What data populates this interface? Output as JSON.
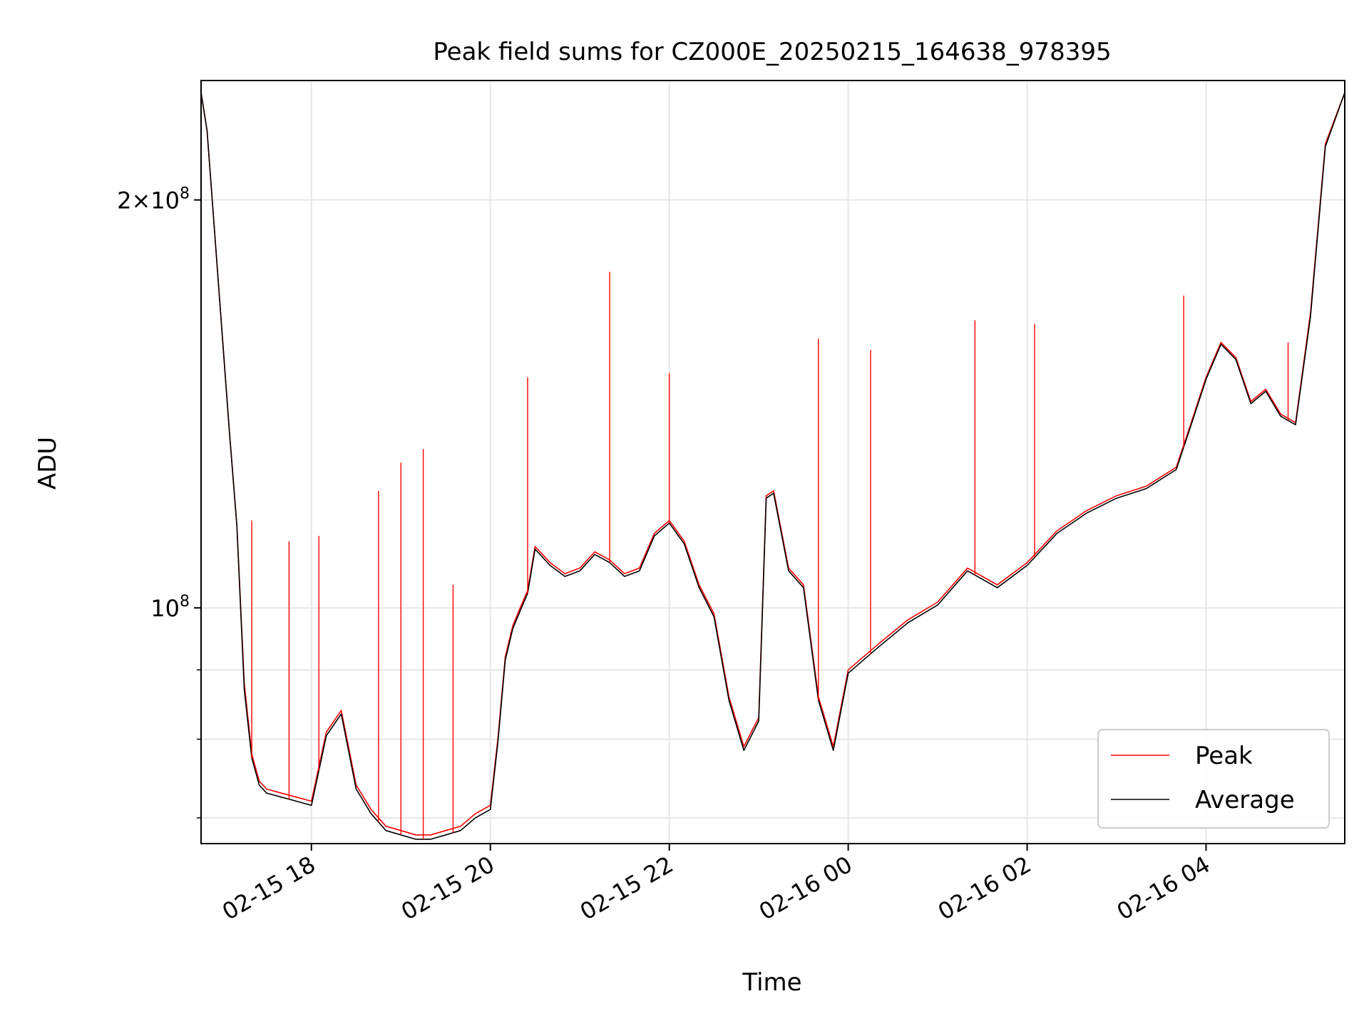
{
  "chart_data": {
    "type": "line",
    "title": "Peak field sums for CZ000E_20250215_164638_978395",
    "xlabel": "Time",
    "ylabel": "ADU",
    "y_scale": "log",
    "grid": true,
    "legend_position": "lower-right",
    "xlim": [
      "2025-02-15T16:46",
      "2025-02-16T05:33"
    ],
    "ylim": [
      67000000,
      245000000
    ],
    "x_ticks": [
      {
        "t": "2025-02-15T18:00",
        "label": "02-15 18"
      },
      {
        "t": "2025-02-15T20:00",
        "label": "02-15 20"
      },
      {
        "t": "2025-02-15T22:00",
        "label": "02-15 22"
      },
      {
        "t": "2025-02-16T00:00",
        "label": "02-16 00"
      },
      {
        "t": "2025-02-16T02:00",
        "label": "02-16 02"
      },
      {
        "t": "2025-02-16T04:00",
        "label": "02-16 04"
      }
    ],
    "y_major_ticks": [
      {
        "v": 100000000,
        "mantissa": "",
        "exponent": "8"
      },
      {
        "v": 200000000,
        "mantissa": "2×",
        "exponent": "8"
      }
    ],
    "y_minor_ticks": [
      70000000,
      80000000,
      90000000
    ],
    "x": [
      "2025-02-15T16:46",
      "2025-02-15T16:50",
      "2025-02-15T16:55",
      "2025-02-15T17:00",
      "2025-02-15T17:05",
      "2025-02-15T17:10",
      "2025-02-15T17:15",
      "2025-02-15T17:20",
      "2025-02-15T17:25",
      "2025-02-15T17:30",
      "2025-02-15T17:40",
      "2025-02-15T17:50",
      "2025-02-15T18:00",
      "2025-02-15T18:10",
      "2025-02-15T18:20",
      "2025-02-15T18:30",
      "2025-02-15T18:40",
      "2025-02-15T18:50",
      "2025-02-15T19:00",
      "2025-02-15T19:10",
      "2025-02-15T19:20",
      "2025-02-15T19:30",
      "2025-02-15T19:40",
      "2025-02-15T19:50",
      "2025-02-15T20:00",
      "2025-02-15T20:05",
      "2025-02-15T20:10",
      "2025-02-15T20:15",
      "2025-02-15T20:20",
      "2025-02-15T20:25",
      "2025-02-15T20:30",
      "2025-02-15T20:40",
      "2025-02-15T20:50",
      "2025-02-15T21:00",
      "2025-02-15T21:10",
      "2025-02-15T21:20",
      "2025-02-15T21:30",
      "2025-02-15T21:40",
      "2025-02-15T21:50",
      "2025-02-15T22:00",
      "2025-02-15T22:10",
      "2025-02-15T22:20",
      "2025-02-15T22:30",
      "2025-02-15T22:40",
      "2025-02-15T22:50",
      "2025-02-15T23:00",
      "2025-02-15T23:05",
      "2025-02-15T23:10",
      "2025-02-15T23:20",
      "2025-02-15T23:30",
      "2025-02-15T23:40",
      "2025-02-15T23:50",
      "2025-02-16T00:00",
      "2025-02-16T00:20",
      "2025-02-16T00:40",
      "2025-02-16T01:00",
      "2025-02-16T01:20",
      "2025-02-16T01:40",
      "2025-02-16T02:00",
      "2025-02-16T02:20",
      "2025-02-16T02:40",
      "2025-02-16T03:00",
      "2025-02-16T03:20",
      "2025-02-16T03:40",
      "2025-02-16T03:50",
      "2025-02-16T04:00",
      "2025-02-16T04:10",
      "2025-02-16T04:20",
      "2025-02-16T04:30",
      "2025-02-16T04:40",
      "2025-02-16T04:50",
      "2025-02-16T05:00",
      "2025-02-16T05:10",
      "2025-02-16T05:20",
      "2025-02-16T05:33"
    ],
    "series": [
      {
        "name": "Peak",
        "color": "#ff0000",
        "values": [
          240000000,
          225000000,
          190000000,
          160000000,
          135000000,
          115000000,
          88000000,
          78000000,
          74500000,
          73500000,
          73000000,
          72500000,
          72000000,
          81000000,
          84000000,
          74000000,
          71000000,
          69000000,
          68500000,
          68000000,
          68000000,
          68500000,
          69000000,
          70500000,
          71500000,
          80000000,
          92000000,
          97000000,
          100000000,
          103000000,
          111000000,
          108000000,
          106000000,
          107000000,
          110000000,
          108500000,
          106000000,
          107000000,
          113500000,
          116000000,
          112000000,
          104000000,
          99000000,
          86000000,
          79000000,
          83000000,
          121000000,
          122000000,
          107000000,
          104000000,
          86000000,
          79000000,
          90000000,
          94000000,
          98000000,
          101000000,
          107000000,
          104000000,
          108000000,
          114000000,
          118000000,
          121000000,
          123000000,
          127000000,
          137000000,
          148000000,
          157000000,
          153000000,
          142000000,
          145000000,
          139000000,
          137000000,
          165000000,
          220000000,
          240000000
        ]
      },
      {
        "name": "Average",
        "color": "#000000",
        "values": [
          240000000,
          225000000,
          190000000,
          160000000,
          135000000,
          115000000,
          87000000,
          77500000,
          74000000,
          73000000,
          72500000,
          72000000,
          71500000,
          80500000,
          83500000,
          73500000,
          70500000,
          68500000,
          68000000,
          67500000,
          67500000,
          68000000,
          68500000,
          70000000,
          71000000,
          79500000,
          91500000,
          96500000,
          99500000,
          102500000,
          110500000,
          107500000,
          105500000,
          106500000,
          109500000,
          108000000,
          105500000,
          106500000,
          113000000,
          115500000,
          111500000,
          103500000,
          98500000,
          85500000,
          78500000,
          82500000,
          120500000,
          121500000,
          106500000,
          103500000,
          85500000,
          78500000,
          89500000,
          93500000,
          97500000,
          100500000,
          106500000,
          103500000,
          107500000,
          113500000,
          117500000,
          120500000,
          122500000,
          126500000,
          136500000,
          147500000,
          156500000,
          152500000,
          141500000,
          144500000,
          138500000,
          136500000,
          164000000,
          219000000,
          240000000
        ]
      }
    ],
    "peak_spikes": [
      {
        "t": "2025-02-15T17:20",
        "v": 116000000
      },
      {
        "t": "2025-02-15T17:45",
        "v": 112000000
      },
      {
        "t": "2025-02-15T18:05",
        "v": 113000000
      },
      {
        "t": "2025-02-15T18:45",
        "v": 122000000
      },
      {
        "t": "2025-02-15T19:00",
        "v": 128000000
      },
      {
        "t": "2025-02-15T19:15",
        "v": 131000000
      },
      {
        "t": "2025-02-15T19:35",
        "v": 104000000
      },
      {
        "t": "2025-02-15T20:25",
        "v": 148000000
      },
      {
        "t": "2025-02-15T21:20",
        "v": 177000000
      },
      {
        "t": "2025-02-15T22:00",
        "v": 149000000
      },
      {
        "t": "2025-02-15T23:40",
        "v": 158000000
      },
      {
        "t": "2025-02-16T00:15",
        "v": 155000000
      },
      {
        "t": "2025-02-16T01:25",
        "v": 163000000
      },
      {
        "t": "2025-02-16T02:05",
        "v": 162000000
      },
      {
        "t": "2025-02-16T03:45",
        "v": 170000000
      },
      {
        "t": "2025-02-16T04:55",
        "v": 157000000
      }
    ],
    "legend": [
      {
        "label": "Peak",
        "color": "#ff0000"
      },
      {
        "label": "Average",
        "color": "#000000"
      }
    ]
  }
}
